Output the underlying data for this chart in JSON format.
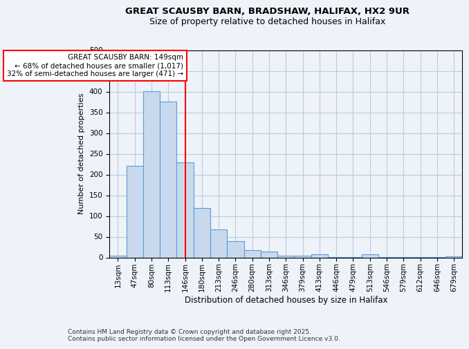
{
  "title1": "GREAT SCAUSBY BARN, BRADSHAW, HALIFAX, HX2 9UR",
  "title2": "Size of property relative to detached houses in Halifax",
  "xlabel": "Distribution of detached houses by size in Halifax",
  "ylabel": "Number of detached properties",
  "categories": [
    "13sqm",
    "47sqm",
    "80sqm",
    "113sqm",
    "146sqm",
    "180sqm",
    "213sqm",
    "246sqm",
    "280sqm",
    "313sqm",
    "346sqm",
    "379sqm",
    "413sqm",
    "446sqm",
    "479sqm",
    "513sqm",
    "546sqm",
    "579sqm",
    "612sqm",
    "646sqm",
    "679sqm"
  ],
  "values": [
    4,
    221,
    401,
    376,
    229,
    120,
    68,
    39,
    18,
    14,
    5,
    4,
    7,
    1,
    1,
    8,
    1,
    1,
    1,
    1,
    3
  ],
  "bar_color": "#c8d9ed",
  "bar_edge_color": "#5b9bd5",
  "vline_x_index": 4,
  "vline_color": "red",
  "annotation_text": "GREAT SCAUSBY BARN: 149sqm\n← 68% of detached houses are smaller (1,017)\n32% of semi-detached houses are larger (471) →",
  "annotation_box_color": "white",
  "annotation_box_edge_color": "red",
  "ylim": [
    0,
    500
  ],
  "yticks": [
    0,
    50,
    100,
    150,
    200,
    250,
    300,
    350,
    400,
    450,
    500
  ],
  "grid_color": "#b8cce4",
  "background_color": "#eef2f9",
  "footer": "Contains HM Land Registry data © Crown copyright and database right 2025.\nContains public sector information licensed under the Open Government Licence v3.0.",
  "title1_fontsize": 9.5,
  "title2_fontsize": 9,
  "xlabel_fontsize": 8.5,
  "ylabel_fontsize": 8,
  "tick_fontsize": 7.5,
  "annotation_fontsize": 7.5,
  "footer_fontsize": 6.5
}
